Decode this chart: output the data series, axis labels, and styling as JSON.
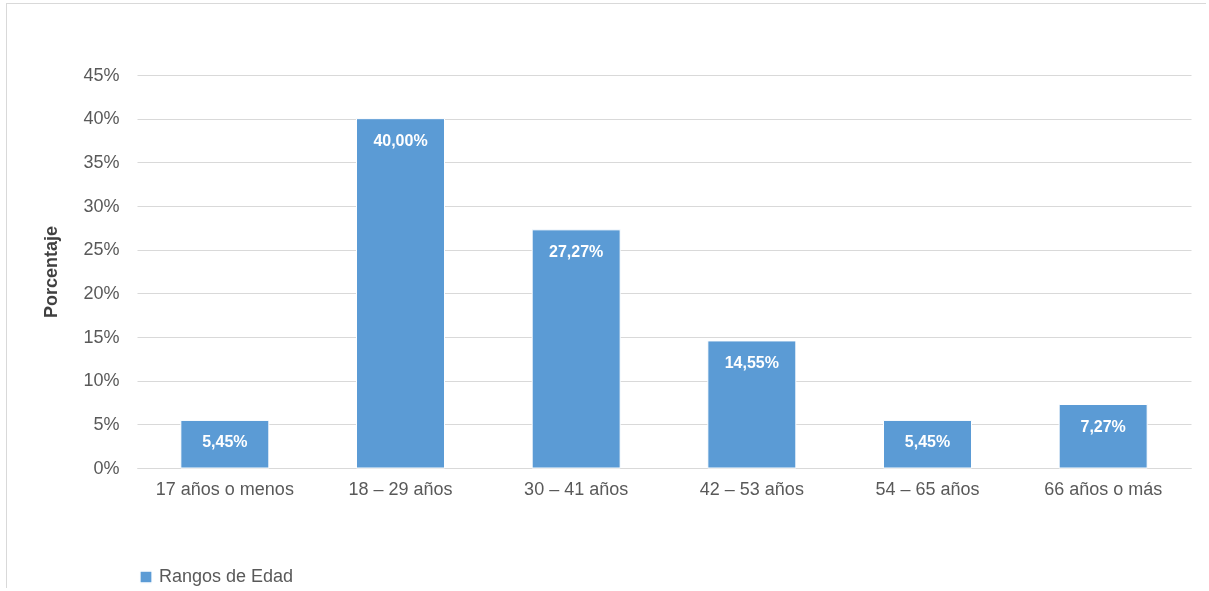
{
  "chart_data": {
    "type": "bar",
    "ylabel": "Porcentaje",
    "categories": [
      "17 años o menos",
      "18 – 29 años",
      "30 – 41 años",
      "42 – 53 años",
      "54 – 65 años",
      "66 años o más"
    ],
    "series": [
      {
        "name": "Rangos de Edad",
        "color": "#5b9bd5",
        "values": [
          5.45,
          40.0,
          27.27,
          14.55,
          5.45,
          7.27
        ],
        "value_labels": [
          "5,45%",
          "40,00%",
          "27,27%",
          "14,55%",
          "5,45%",
          "7,27%"
        ]
      }
    ],
    "ylim": [
      0,
      45
    ],
    "yticks": [
      {
        "value": 0,
        "label": "0%"
      },
      {
        "value": 5,
        "label": "5%"
      },
      {
        "value": 10,
        "label": "10%"
      },
      {
        "value": 15,
        "label": "15%"
      },
      {
        "value": 20,
        "label": "20%"
      },
      {
        "value": 25,
        "label": "25%"
      },
      {
        "value": 30,
        "label": "30%"
      },
      {
        "value": 35,
        "label": "35%"
      },
      {
        "value": 40,
        "label": "40%"
      },
      {
        "value": 45,
        "label": "45%"
      }
    ],
    "grid": "y",
    "legend": "bottom"
  }
}
